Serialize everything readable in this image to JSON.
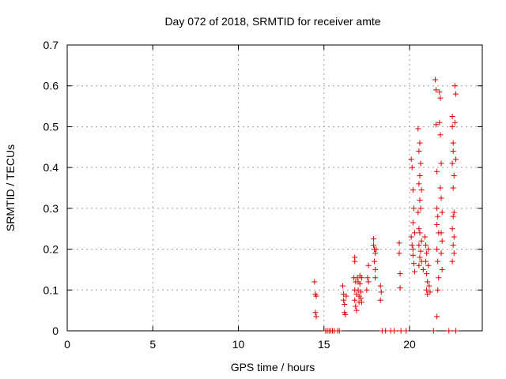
{
  "chart_data": {
    "type": "scatter",
    "title": "Day 072 of 2018, SRMTID for receiver amte",
    "xlabel": "GPS time / hours",
    "ylabel": "SRMTID / TECUs",
    "xlim": [
      0,
      24.25
    ],
    "ylim": [
      0,
      0.7
    ],
    "xticks": [
      0,
      5,
      10,
      15,
      20
    ],
    "yticks": [
      0,
      0.1,
      0.2,
      0.3,
      0.4,
      0.5,
      0.6,
      0.7
    ],
    "ytick_labels": [
      "0",
      "0.1",
      "0.2",
      "0.3",
      "0.4",
      "0.5",
      "0.6",
      "0.7"
    ],
    "grid": true,
    "marker": "+",
    "color": "#e00000",
    "series": [
      {
        "name": "SRMTID",
        "points": [
          [
            14.45,
            0.12
          ],
          [
            14.5,
            0.09
          ],
          [
            14.55,
            0.085
          ],
          [
            14.5,
            0.045
          ],
          [
            14.55,
            0.035
          ],
          [
            15.1,
            0.0
          ],
          [
            15.2,
            0.0
          ],
          [
            15.3,
            0.0
          ],
          [
            15.4,
            0.0
          ],
          [
            15.5,
            0.0
          ],
          [
            15.6,
            0.0
          ],
          [
            15.8,
            0.0
          ],
          [
            15.9,
            0.0
          ],
          [
            16.1,
            0.11
          ],
          [
            16.15,
            0.09
          ],
          [
            16.15,
            0.075
          ],
          [
            16.2,
            0.065
          ],
          [
            16.2,
            0.045
          ],
          [
            16.25,
            0.04
          ],
          [
            16.3,
            0.085
          ],
          [
            16.8,
            0.18
          ],
          [
            16.8,
            0.17
          ],
          [
            16.75,
            0.13
          ],
          [
            16.85,
            0.12
          ],
          [
            16.8,
            0.1
          ],
          [
            16.9,
            0.09
          ],
          [
            16.8,
            0.075
          ],
          [
            16.85,
            0.06
          ],
          [
            16.9,
            0.05
          ],
          [
            16.95,
            0.13
          ],
          [
            17.0,
            0.12
          ],
          [
            17.0,
            0.1
          ],
          [
            17.05,
            0.085
          ],
          [
            17.05,
            0.07
          ],
          [
            17.1,
            0.135
          ],
          [
            17.1,
            0.115
          ],
          [
            17.15,
            0.095
          ],
          [
            17.15,
            0.08
          ],
          [
            17.2,
            0.07
          ],
          [
            17.2,
            0.13
          ],
          [
            17.5,
            0.1
          ],
          [
            17.55,
            0.13
          ],
          [
            17.6,
            0.16
          ],
          [
            17.6,
            0.12
          ],
          [
            17.9,
            0.225
          ],
          [
            17.9,
            0.21
          ],
          [
            17.95,
            0.2
          ],
          [
            18.0,
            0.19
          ],
          [
            17.95,
            0.17
          ],
          [
            18.0,
            0.15
          ],
          [
            18.0,
            0.13
          ],
          [
            18.05,
            0.2
          ],
          [
            18.3,
            0.11
          ],
          [
            18.35,
            0.095
          ],
          [
            18.3,
            0.075
          ],
          [
            18.4,
            0.0
          ],
          [
            18.6,
            0.0
          ],
          [
            18.9,
            0.0
          ],
          [
            19.1,
            0.0
          ],
          [
            19.5,
            0.0
          ],
          [
            19.8,
            0.0
          ],
          [
            19.4,
            0.215
          ],
          [
            19.4,
            0.19
          ],
          [
            19.45,
            0.14
          ],
          [
            19.45,
            0.105
          ],
          [
            20.1,
            0.42
          ],
          [
            20.15,
            0.4
          ],
          [
            20.2,
            0.345
          ],
          [
            20.25,
            0.3
          ],
          [
            20.2,
            0.265
          ],
          [
            20.1,
            0.23
          ],
          [
            20.15,
            0.21
          ],
          [
            20.2,
            0.2
          ],
          [
            20.2,
            0.185
          ],
          [
            20.25,
            0.165
          ],
          [
            20.3,
            0.24
          ],
          [
            20.3,
            0.145
          ],
          [
            20.5,
            0.495
          ],
          [
            20.6,
            0.46
          ],
          [
            20.55,
            0.44
          ],
          [
            20.65,
            0.41
          ],
          [
            20.6,
            0.38
          ],
          [
            20.55,
            0.36
          ],
          [
            20.7,
            0.345
          ],
          [
            20.6,
            0.32
          ],
          [
            20.65,
            0.3
          ],
          [
            20.5,
            0.29
          ],
          [
            20.55,
            0.25
          ],
          [
            20.6,
            0.24
          ],
          [
            20.7,
            0.22
          ],
          [
            20.55,
            0.21
          ],
          [
            20.65,
            0.195
          ],
          [
            20.6,
            0.18
          ],
          [
            20.7,
            0.17
          ],
          [
            20.55,
            0.16
          ],
          [
            20.8,
            0.15
          ],
          [
            20.9,
            0.23
          ],
          [
            20.95,
            0.21
          ],
          [
            21.0,
            0.19
          ],
          [
            20.95,
            0.17
          ],
          [
            21.0,
            0.14
          ],
          [
            21.05,
            0.12
          ],
          [
            21.0,
            0.1
          ],
          [
            21.05,
            0.09
          ],
          [
            21.1,
            0.2
          ],
          [
            21.1,
            0.16
          ],
          [
            21.15,
            0.11
          ],
          [
            21.2,
            0.095
          ],
          [
            21.5,
            0.615
          ],
          [
            21.55,
            0.59
          ],
          [
            21.55,
            0.505
          ],
          [
            21.6,
            0.39
          ],
          [
            21.6,
            0.3
          ],
          [
            21.65,
            0.28
          ],
          [
            21.6,
            0.26
          ],
          [
            21.7,
            0.24
          ],
          [
            21.6,
            0.2
          ],
          [
            21.65,
            0.17
          ],
          [
            21.7,
            0.13
          ],
          [
            21.65,
            0.1
          ],
          [
            21.75,
            0.585
          ],
          [
            21.8,
            0.57
          ],
          [
            21.75,
            0.51
          ],
          [
            21.8,
            0.48
          ],
          [
            21.85,
            0.41
          ],
          [
            21.8,
            0.35
          ],
          [
            21.85,
            0.325
          ],
          [
            21.9,
            0.29
          ],
          [
            21.85,
            0.24
          ],
          [
            21.9,
            0.22
          ],
          [
            21.85,
            0.19
          ],
          [
            21.9,
            0.15
          ],
          [
            21.6,
            0.035
          ],
          [
            22.5,
            0.525
          ],
          [
            22.5,
            0.5
          ],
          [
            22.55,
            0.46
          ],
          [
            22.55,
            0.44
          ],
          [
            22.5,
            0.41
          ],
          [
            22.6,
            0.38
          ],
          [
            22.55,
            0.35
          ],
          [
            22.6,
            0.29
          ],
          [
            22.55,
            0.28
          ],
          [
            22.5,
            0.25
          ],
          [
            22.6,
            0.23
          ],
          [
            22.55,
            0.21
          ],
          [
            22.6,
            0.19
          ],
          [
            22.5,
            0.17
          ],
          [
            22.65,
            0.6
          ],
          [
            22.7,
            0.58
          ],
          [
            22.65,
            0.51
          ],
          [
            22.7,
            0.42
          ],
          [
            21.4,
            0.0
          ],
          [
            22.3,
            0.0
          ],
          [
            22.7,
            0.0
          ]
        ]
      }
    ]
  }
}
